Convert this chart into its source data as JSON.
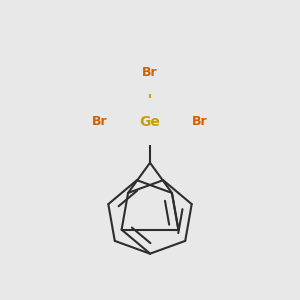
{
  "bg_color": "#e8e8e8",
  "bond_color": "#2d2d2d",
  "ge_color": "#c8a000",
  "br_color": "#d06000",
  "ge_label": "Ge",
  "br_label": "Br",
  "lw": 1.5,
  "font_size_ge": 10,
  "font_size_br": 9,
  "figsize": [
    3.0,
    3.0
  ],
  "dpi": 100
}
